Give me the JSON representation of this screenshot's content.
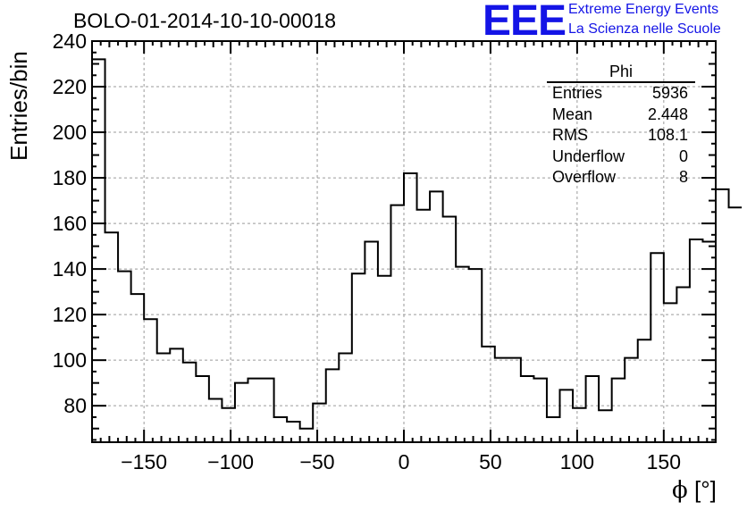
{
  "title": "BOLO-01-2014-10-10-00018",
  "logo": {
    "mark": "EEE",
    "line1": "Extreme Energy Events",
    "line2": "La Scienza nelle Scuole",
    "color": "#1414e6"
  },
  "stats_box": {
    "title": "Phi",
    "rows": [
      {
        "label": "Entries",
        "value": "5936"
      },
      {
        "label": "Mean",
        "value": "2.448"
      },
      {
        "label": "RMS",
        "value": "108.1"
      },
      {
        "label": "Underflow",
        "value": "0"
      },
      {
        "label": "Overflow",
        "value": "8"
      }
    ]
  },
  "chart_data": {
    "type": "histogram",
    "title": "BOLO-01-2014-10-10-00018",
    "xlabel_symbol": "ϕ",
    "xlabel_unit": "[°]",
    "ylabel": "Entries/bin",
    "xlim": [
      -180,
      180
    ],
    "ylim": [
      64,
      240
    ],
    "bin_width": 7.5,
    "x_ticks": [
      -150,
      -100,
      -50,
      0,
      50,
      100,
      150
    ],
    "x_tick_labels": [
      "−150",
      "−100",
      "−50",
      "0",
      "50",
      "100",
      "150"
    ],
    "y_ticks": [
      80,
      100,
      120,
      140,
      160,
      180,
      200,
      220,
      240
    ],
    "grid": true,
    "values": [
      232,
      156,
      139,
      129,
      118,
      103,
      105,
      99,
      93,
      83,
      79,
      90,
      92,
      92,
      75,
      73,
      70,
      81,
      96,
      103,
      138,
      152,
      137,
      168,
      182,
      166,
      174,
      163,
      141,
      140,
      106,
      101,
      101,
      93,
      92,
      75,
      87,
      79,
      93,
      78,
      92,
      101,
      109,
      147,
      125,
      132,
      153,
      152,
      175,
      167
    ]
  }
}
